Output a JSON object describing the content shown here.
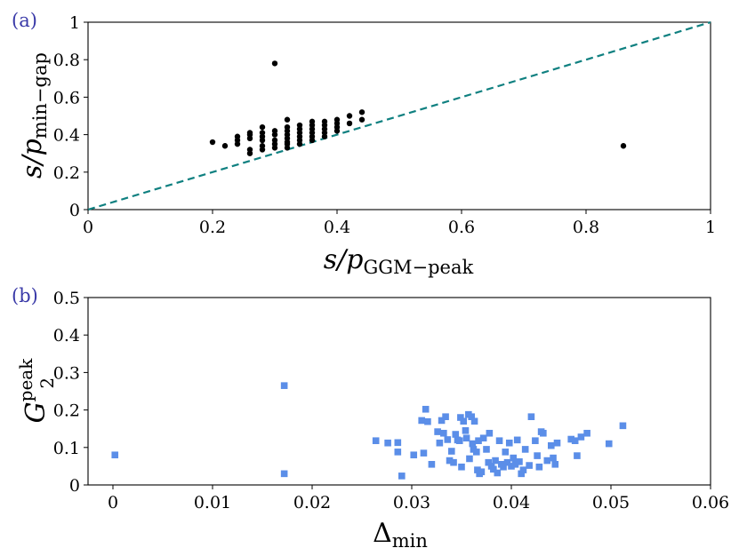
{
  "chart_data": [
    {
      "type": "scatter",
      "panel_label": "(a)",
      "xlabel": {
        "main": "s/p",
        "sub": "GGM−peak"
      },
      "ylabel": {
        "main": "s/p",
        "sub": "min−gap"
      },
      "xlim": [
        0,
        1
      ],
      "ylim": [
        0,
        1
      ],
      "xticks": [
        0,
        0.2,
        0.4,
        0.6,
        0.8,
        1
      ],
      "xtick_labels": [
        "0",
        "0.2",
        "0.4",
        "0.6",
        "0.8",
        "1"
      ],
      "yticks": [
        0,
        0.2,
        0.4,
        0.6,
        0.8,
        1
      ],
      "ytick_labels": [
        "0",
        "0.2",
        "0.4",
        "0.6",
        "0.8",
        "1"
      ],
      "marker_color": "#000000",
      "reference_line": {
        "x": [
          0,
          1
        ],
        "y": [
          0,
          1
        ],
        "style": "dashed",
        "color": "#0f8080"
      },
      "series": [
        {
          "name": "points",
          "points": [
            [
              0.2,
              0.36
            ],
            [
              0.22,
              0.34
            ],
            [
              0.24,
              0.35
            ],
            [
              0.24,
              0.37
            ],
            [
              0.24,
              0.39
            ],
            [
              0.26,
              0.3
            ],
            [
              0.26,
              0.32
            ],
            [
              0.26,
              0.38
            ],
            [
              0.26,
              0.4
            ],
            [
              0.26,
              0.41
            ],
            [
              0.28,
              0.32
            ],
            [
              0.28,
              0.34
            ],
            [
              0.28,
              0.37
            ],
            [
              0.28,
              0.39
            ],
            [
              0.28,
              0.41
            ],
            [
              0.28,
              0.44
            ],
            [
              0.3,
              0.33
            ],
            [
              0.3,
              0.35
            ],
            [
              0.3,
              0.37
            ],
            [
              0.3,
              0.4
            ],
            [
              0.3,
              0.42
            ],
            [
              0.3,
              0.78
            ],
            [
              0.32,
              0.33
            ],
            [
              0.32,
              0.35
            ],
            [
              0.32,
              0.36
            ],
            [
              0.32,
              0.38
            ],
            [
              0.32,
              0.4
            ],
            [
              0.32,
              0.42
            ],
            [
              0.32,
              0.44
            ],
            [
              0.32,
              0.48
            ],
            [
              0.34,
              0.35
            ],
            [
              0.34,
              0.37
            ],
            [
              0.34,
              0.39
            ],
            [
              0.34,
              0.41
            ],
            [
              0.34,
              0.43
            ],
            [
              0.34,
              0.45
            ],
            [
              0.36,
              0.37
            ],
            [
              0.36,
              0.39
            ],
            [
              0.36,
              0.41
            ],
            [
              0.36,
              0.43
            ],
            [
              0.36,
              0.45
            ],
            [
              0.36,
              0.47
            ],
            [
              0.38,
              0.39
            ],
            [
              0.38,
              0.41
            ],
            [
              0.38,
              0.43
            ],
            [
              0.38,
              0.45
            ],
            [
              0.38,
              0.47
            ],
            [
              0.4,
              0.42
            ],
            [
              0.4,
              0.44
            ],
            [
              0.4,
              0.46
            ],
            [
              0.4,
              0.48
            ],
            [
              0.42,
              0.46
            ],
            [
              0.42,
              0.5
            ],
            [
              0.44,
              0.48
            ],
            [
              0.44,
              0.52
            ],
            [
              0.86,
              0.34
            ]
          ]
        }
      ]
    },
    {
      "type": "scatter",
      "panel_label": "(b)",
      "xlabel": {
        "main": "Δ",
        "sub": "min"
      },
      "ylabel": {
        "main": "G",
        "sub": "2",
        "sup": "peak"
      },
      "xlim": [
        -0.0025,
        0.06
      ],
      "ylim": [
        0,
        0.5
      ],
      "xticks": [
        0,
        0.01,
        0.02,
        0.03,
        0.04,
        0.05,
        0.06
      ],
      "xtick_labels": [
        "0",
        "0.01",
        "0.02",
        "0.03",
        "0.04",
        "0.05",
        "0.06"
      ],
      "yticks": [
        0,
        0.1,
        0.2,
        0.3,
        0.4,
        0.5
      ],
      "ytick_labels": [
        "0",
        "0.1",
        "0.2",
        "0.3",
        "0.4",
        "0.5"
      ],
      "marker_color": "#5b8ee8",
      "series": [
        {
          "name": "points",
          "points": [
            [
              0.0002,
              0.08
            ],
            [
              0.0172,
              0.265
            ],
            [
              0.0172,
              0.03
            ],
            [
              0.0264,
              0.118
            ],
            [
              0.0276,
              0.112
            ],
            [
              0.0286,
              0.113
            ],
            [
              0.0286,
              0.088
            ],
            [
              0.029,
              0.024
            ],
            [
              0.0302,
              0.08
            ],
            [
              0.031,
              0.172
            ],
            [
              0.0312,
              0.085
            ],
            [
              0.0314,
              0.202
            ],
            [
              0.0316,
              0.169
            ],
            [
              0.032,
              0.055
            ],
            [
              0.0326,
              0.142
            ],
            [
              0.0328,
              0.112
            ],
            [
              0.033,
              0.172
            ],
            [
              0.0332,
              0.138
            ],
            [
              0.0334,
              0.182
            ],
            [
              0.0336,
              0.121
            ],
            [
              0.0338,
              0.065
            ],
            [
              0.034,
              0.09
            ],
            [
              0.0342,
              0.06
            ],
            [
              0.0344,
              0.135
            ],
            [
              0.0346,
              0.12
            ],
            [
              0.0348,
              0.118
            ],
            [
              0.0349,
              0.18
            ],
            [
              0.035,
              0.048
            ],
            [
              0.0352,
              0.17
            ],
            [
              0.0354,
              0.145
            ],
            [
              0.0355,
              0.125
            ],
            [
              0.0357,
              0.188
            ],
            [
              0.0358,
              0.07
            ],
            [
              0.036,
              0.182
            ],
            [
              0.0361,
              0.11
            ],
            [
              0.0362,
              0.095
            ],
            [
              0.0363,
              0.17
            ],
            [
              0.0365,
              0.088
            ],
            [
              0.0366,
              0.04
            ],
            [
              0.0367,
              0.118
            ],
            [
              0.0368,
              0.03
            ],
            [
              0.037,
              0.035
            ],
            [
              0.0372,
              0.125
            ],
            [
              0.0375,
              0.095
            ],
            [
              0.0377,
              0.06
            ],
            [
              0.0378,
              0.138
            ],
            [
              0.038,
              0.05
            ],
            [
              0.0382,
              0.042
            ],
            [
              0.0384,
              0.065
            ],
            [
              0.0386,
              0.032
            ],
            [
              0.0388,
              0.118
            ],
            [
              0.039,
              0.055
            ],
            [
              0.0392,
              0.048
            ],
            [
              0.0394,
              0.088
            ],
            [
              0.0396,
              0.06
            ],
            [
              0.0398,
              0.112
            ],
            [
              0.04,
              0.05
            ],
            [
              0.0402,
              0.072
            ],
            [
              0.0404,
              0.055
            ],
            [
              0.0406,
              0.12
            ],
            [
              0.0408,
              0.062
            ],
            [
              0.041,
              0.03
            ],
            [
              0.0412,
              0.04
            ],
            [
              0.0414,
              0.095
            ],
            [
              0.0418,
              0.052
            ],
            [
              0.042,
              0.182
            ],
            [
              0.0424,
              0.118
            ],
            [
              0.0426,
              0.078
            ],
            [
              0.0428,
              0.048
            ],
            [
              0.043,
              0.142
            ],
            [
              0.0432,
              0.138
            ],
            [
              0.0436,
              0.065
            ],
            [
              0.044,
              0.105
            ],
            [
              0.0442,
              0.072
            ],
            [
              0.0444,
              0.055
            ],
            [
              0.0446,
              0.112
            ],
            [
              0.046,
              0.122
            ],
            [
              0.0464,
              0.118
            ],
            [
              0.0466,
              0.078
            ],
            [
              0.047,
              0.128
            ],
            [
              0.0476,
              0.138
            ],
            [
              0.0498,
              0.11
            ],
            [
              0.0512,
              0.158
            ]
          ]
        }
      ]
    }
  ]
}
